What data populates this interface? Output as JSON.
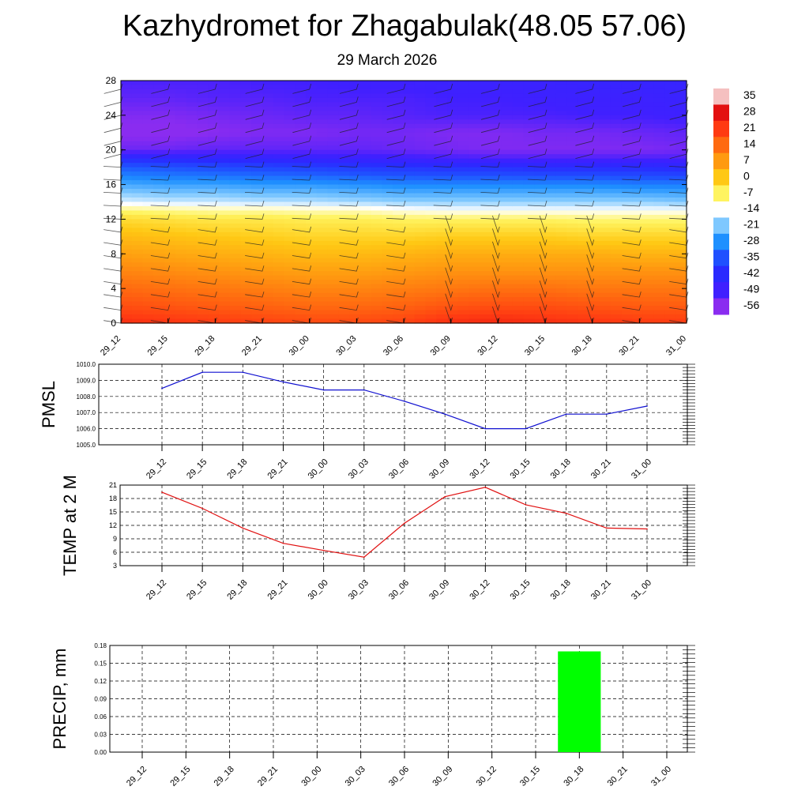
{
  "header": {
    "title": "Kazhydromet for Zhagabulak(48.05 57.06)",
    "subtitle": "29 March 2026"
  },
  "time_labels": [
    "29_12",
    "29_15",
    "29_18",
    "29_21",
    "30_00",
    "30_03",
    "30_06",
    "30_09",
    "30_12",
    "30_15",
    "30_18",
    "30_21",
    "31_00"
  ],
  "chart_data": [
    {
      "type": "heatmap",
      "name": "cross-section",
      "x": [
        "29_12",
        "29_15",
        "29_18",
        "29_21",
        "30_00",
        "30_03",
        "30_06",
        "30_09",
        "30_12",
        "30_15",
        "30_18",
        "30_21",
        "31_00"
      ],
      "ylim": [
        0,
        28
      ],
      "yticks": [
        0,
        4,
        8,
        12,
        16,
        20,
        24,
        28
      ],
      "colorbar": {
        "labels": [
          "35",
          "28",
          "21",
          "14",
          "7",
          "0",
          "-7",
          "-14",
          "-21",
          "-28",
          "-35",
          "-42",
          "-49",
          "-56"
        ],
        "colors": [
          "#f5c0c0",
          "#e31010",
          "#ff3a12",
          "#ff6a10",
          "#ff9a10",
          "#ffc814",
          "#fff460",
          "#ffffff",
          "#7ec8ff",
          "#1e90ff",
          "#2050ff",
          "#2a2aff",
          "#4020ff",
          "#8a2cf0"
        ]
      },
      "levels": [
        0,
        2,
        4,
        6,
        8,
        10,
        12,
        13,
        14,
        16,
        18,
        19,
        20,
        22,
        24,
        26,
        28
      ],
      "temperatures": [
        [
          23,
          22,
          21,
          20,
          19,
          19,
          20,
          23,
          24,
          23,
          22,
          21,
          21
        ],
        [
          18,
          17,
          16,
          15,
          14,
          14,
          15,
          17,
          18,
          18,
          17,
          16,
          16
        ],
        [
          14,
          13,
          12,
          11,
          10,
          10,
          11,
          12,
          13,
          13,
          12,
          12,
          12
        ],
        [
          10,
          9,
          8,
          7,
          6,
          6,
          7,
          8,
          8,
          8,
          8,
          8,
          8
        ],
        [
          6,
          5,
          4,
          3,
          2,
          2,
          3,
          4,
          4,
          4,
          4,
          3,
          3
        ],
        [
          2,
          1,
          0,
          -1,
          -2,
          -2,
          -2,
          -1,
          -1,
          -1,
          -2,
          -2,
          -2
        ],
        [
          -3,
          -4,
          -5,
          -5,
          -6,
          -6,
          -7,
          -7,
          -7,
          -7,
          -8,
          -8,
          -8
        ],
        [
          -8,
          -9,
          -10,
          -10,
          -11,
          -11,
          -13,
          -14,
          -14,
          -14,
          -14,
          -14,
          -14
        ],
        [
          -16,
          -17,
          -17,
          -18,
          -18,
          -19,
          -20,
          -20,
          -20,
          -20,
          -20,
          -20,
          -21
        ],
        [
          -25,
          -26,
          -26,
          -27,
          -27,
          -28,
          -29,
          -29,
          -29,
          -29,
          -29,
          -30,
          -30
        ],
        [
          -34,
          -35,
          -36,
          -37,
          -38,
          -39,
          -40,
          -41,
          -41,
          -42,
          -42,
          -42,
          -43
        ],
        [
          -42,
          -43,
          -44,
          -45,
          -46,
          -47,
          -48,
          -49,
          -50,
          -50,
          -50,
          -50,
          -50
        ],
        [
          -53,
          -53,
          -52,
          -52,
          -52,
          -52,
          -53,
          -54,
          -55,
          -55,
          -55,
          -55,
          -54
        ],
        [
          -57,
          -57,
          -56,
          -55,
          -55,
          -54,
          -54,
          -55,
          -55,
          -54,
          -54,
          -53,
          -52
        ],
        [
          -55,
          -55,
          -54,
          -53,
          -52,
          -52,
          -51,
          -50,
          -50,
          -50,
          -49,
          -49,
          -48
        ],
        [
          -52,
          -52,
          -51,
          -51,
          -50,
          -50,
          -50,
          -49,
          -49,
          -48,
          -48,
          -48,
          -47
        ],
        [
          -50,
          -50,
          -50,
          -49,
          -49,
          -48,
          -48,
          -47,
          -47,
          -47,
          -46,
          -46,
          -46
        ]
      ]
    },
    {
      "type": "line",
      "name": "pmsl",
      "ylabel": "PMSL",
      "x": [
        "29_12",
        "29_15",
        "29_18",
        "29_21",
        "30_00",
        "30_03",
        "30_06",
        "30_09",
        "30_12",
        "30_15",
        "30_18",
        "30_21",
        "31_00"
      ],
      "values": [
        1008.5,
        1009.5,
        1009.5,
        1008.9,
        1008.4,
        1008.4,
        1007.7,
        1006.9,
        1006.0,
        1006.0,
        1006.9,
        1006.9,
        1007.4
      ],
      "ylim": [
        1005.0,
        1010.0
      ],
      "yticks": [
        "1005.0",
        "1006.0",
        "1007.0",
        "1008.0",
        "1009.0",
        "1010.0"
      ],
      "color": "#1010d0",
      "grid": true
    },
    {
      "type": "line",
      "name": "temp",
      "ylabel": "TEMP at 2 M",
      "x": [
        "29_12",
        "29_15",
        "29_18",
        "29_21",
        "30_00",
        "30_03",
        "30_06",
        "30_09",
        "30_12",
        "30_15",
        "30_18",
        "30_21",
        "31_00"
      ],
      "values": [
        19.4,
        15.8,
        11.4,
        8.0,
        6.4,
        4.9,
        12.5,
        18.4,
        20.5,
        16.6,
        14.7,
        11.4,
        11.2
      ],
      "ylim": [
        3,
        21
      ],
      "yticks": [
        "3",
        "6",
        "9",
        "12",
        "15",
        "18",
        "21"
      ],
      "color": "#e01010",
      "grid": true
    },
    {
      "type": "bar",
      "name": "precip",
      "ylabel": "PRECIP, mm",
      "categories": [
        "29_12",
        "29_15",
        "29_18",
        "29_21",
        "30_00",
        "30_03",
        "30_06",
        "30_09",
        "30_12",
        "30_15",
        "30_18",
        "30_21",
        "31_00"
      ],
      "values": [
        0,
        0,
        0,
        0,
        0,
        0,
        0,
        0,
        0,
        0,
        0.17,
        0,
        0
      ],
      "ylim": [
        0,
        0.18
      ],
      "yticks": [
        "0.00",
        "0.03",
        "0.06",
        "0.09",
        "0.12",
        "0.15",
        "0.18"
      ],
      "color": "#00ff00",
      "grid": true
    }
  ]
}
